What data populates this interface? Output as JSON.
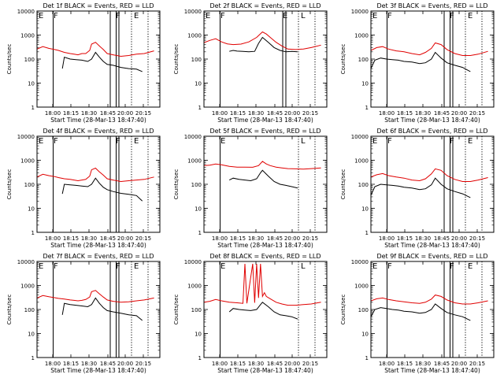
{
  "chart_data": [
    {
      "type": "line",
      "title": "Det 1f BLACK = Events, RED = LLD",
      "xlabel": "Start Time (28-Mar-13 18:47:40)",
      "ylabel": "Counts/sec",
      "yscale": "log",
      "ylim": [
        1,
        10000
      ],
      "y_ticks": [
        "1",
        "10",
        "100",
        "1000",
        "10000"
      ],
      "xlim_minutes": [
        17.45,
        20.6
      ],
      "x_ticks": [
        "18:00",
        "18:15",
        "18:30",
        "18:45",
        "20:00",
        "20:15"
      ],
      "marker_letters": [
        "E",
        "F",
        "F",
        "E"
      ],
      "series": [
        {
          "color": "#e00000",
          "x": [
            17.45,
            17.6,
            17.75,
            17.9,
            18.0,
            18.15,
            18.3,
            18.4,
            18.5,
            18.6,
            18.7,
            18.8,
            18.85,
            18.95,
            19.05,
            19.15,
            19.25,
            19.4,
            19.6,
            19.8,
            20.0,
            20.2,
            20.45
          ],
          "y": [
            260,
            330,
            280,
            250,
            230,
            190,
            170,
            160,
            150,
            170,
            170,
            230,
            420,
            500,
            350,
            250,
            170,
            150,
            130,
            140,
            160,
            170,
            220
          ]
        },
        {
          "color": "#000000",
          "x": [
            18.1,
            18.15,
            18.3,
            18.45,
            18.6,
            18.75,
            18.85,
            18.95,
            19.05,
            19.15,
            19.25,
            19.4,
            19.6,
            19.8,
            20.0,
            20.15
          ],
          "y": [
            40,
            120,
            100,
            95,
            90,
            80,
            100,
            190,
            120,
            80,
            60,
            55,
            45,
            40,
            38,
            30
          ]
        }
      ]
    },
    {
      "type": "line",
      "title": "Det 2f BLACK = Events, RED = LLD",
      "xlabel": "Start Time (28-Mar-13 18:47:40)",
      "ylabel": "Counts/sec",
      "yscale": "log",
      "ylim": [
        1,
        10000
      ],
      "y_ticks": [
        "1",
        "10",
        "100",
        "1000",
        "10000"
      ],
      "xlim_minutes": [
        17.45,
        20.6
      ],
      "x_ticks": [
        "18:00",
        "18:15",
        "18:30",
        "18:45",
        "20:00",
        "20:15"
      ],
      "marker_letters": [
        "E",
        "F",
        "E",
        "L"
      ],
      "series": [
        {
          "color": "#e00000",
          "x": [
            17.45,
            17.6,
            17.75,
            17.9,
            18.05,
            18.2,
            18.4,
            18.6,
            18.8,
            18.95,
            19.05,
            19.15,
            19.3,
            19.45,
            19.6,
            19.8,
            20.0,
            20.2,
            20.45
          ],
          "y": [
            480,
            600,
            700,
            520,
            430,
            400,
            420,
            520,
            800,
            1350,
            1100,
            800,
            500,
            350,
            260,
            250,
            260,
            300,
            380
          ]
        },
        {
          "color": "#000000",
          "x": [
            18.1,
            18.2,
            18.3,
            18.45,
            18.6,
            18.75,
            18.85,
            18.95,
            19.1,
            19.25,
            19.4,
            19.55,
            19.7,
            19.85
          ],
          "y": [
            210,
            230,
            215,
            210,
            200,
            210,
            450,
            800,
            500,
            300,
            230,
            200,
            210,
            200
          ]
        }
      ]
    },
    {
      "type": "line",
      "title": "Det 3f BLACK = Events, RED = LLD",
      "xlabel": "Start Time (28-Mar-13 18:47:40)",
      "ylabel": "Counts/sec",
      "yscale": "log",
      "ylim": [
        1,
        10000
      ],
      "y_ticks": [
        "1",
        "10",
        "100",
        "1000",
        "10000"
      ],
      "xlim_minutes": [
        17.45,
        20.6
      ],
      "x_ticks": [
        "18:00",
        "18:15",
        "18:30",
        "18:45",
        "20:00",
        "20:15"
      ],
      "marker_letters": [
        "E",
        "F",
        "F",
        "E"
      ],
      "series": [
        {
          "color": "#e00000",
          "x": [
            17.45,
            17.6,
            17.75,
            17.9,
            18.1,
            18.3,
            18.5,
            18.7,
            18.85,
            19.0,
            19.1,
            19.25,
            19.4,
            19.6,
            19.8,
            20.0,
            20.2,
            20.45
          ],
          "y": [
            230,
            300,
            330,
            260,
            220,
            200,
            170,
            150,
            190,
            280,
            470,
            400,
            250,
            170,
            140,
            140,
            160,
            210
          ]
        },
        {
          "color": "#000000",
          "x": [
            17.45,
            17.55,
            17.7,
            17.85,
            18.0,
            18.15,
            18.3,
            18.5,
            18.7,
            18.85,
            19.0,
            19.1,
            19.25,
            19.4,
            19.6,
            19.8,
            20.0
          ],
          "y": [
            40,
            90,
            110,
            100,
            95,
            90,
            80,
            75,
            65,
            70,
            100,
            190,
            110,
            70,
            55,
            45,
            30
          ]
        }
      ]
    },
    {
      "type": "line",
      "title": "Det 4f BLACK = Events, RED = LLD",
      "xlabel": "Start Time (28-Mar-13 18:47:40)",
      "ylabel": "Counts/sec",
      "yscale": "log",
      "ylim": [
        1,
        10000
      ],
      "y_ticks": [
        "1",
        "10",
        "100",
        "1000",
        "10000"
      ],
      "xlim_minutes": [
        17.45,
        20.6
      ],
      "x_ticks": [
        "18:00",
        "18:15",
        "18:30",
        "18:45",
        "20:00",
        "20:15"
      ],
      "marker_letters": [
        "E",
        "F",
        "F",
        "E"
      ],
      "series": [
        {
          "color": "#e00000",
          "x": [
            17.45,
            17.6,
            17.75,
            17.9,
            18.0,
            18.15,
            18.3,
            18.4,
            18.5,
            18.6,
            18.7,
            18.8,
            18.85,
            18.95,
            19.05,
            19.15,
            19.25,
            19.4,
            19.6,
            19.8,
            20.0,
            20.2,
            20.45
          ],
          "y": [
            200,
            260,
            230,
            210,
            190,
            170,
            160,
            150,
            140,
            150,
            160,
            220,
            400,
            470,
            330,
            240,
            170,
            150,
            130,
            140,
            150,
            160,
            200
          ]
        },
        {
          "color": "#000000",
          "x": [
            18.1,
            18.15,
            18.3,
            18.45,
            18.6,
            18.75,
            18.85,
            18.95,
            19.05,
            19.15,
            19.25,
            19.4,
            19.6,
            19.8,
            20.0,
            20.15
          ],
          "y": [
            40,
            100,
            95,
            90,
            85,
            80,
            100,
            180,
            110,
            75,
            60,
            50,
            42,
            38,
            34,
            20
          ]
        }
      ]
    },
    {
      "type": "line",
      "title": "Det 5f BLACK = Events, RED = LLD",
      "xlabel": "Start Time (28-Mar-13 18:47:40)",
      "ylabel": "Counts/sec",
      "yscale": "log",
      "ylim": [
        1,
        10000
      ],
      "y_ticks": [
        "1",
        "10",
        "100",
        "1000",
        "10000"
      ],
      "xlim_minutes": [
        17.45,
        20.6
      ],
      "x_ticks": [
        "18:00",
        "18:15",
        "18:30",
        "18:45",
        "20:00",
        "20:15"
      ],
      "marker_letters": [
        "E",
        "L"
      ],
      "series": [
        {
          "color": "#e00000",
          "x": [
            17.45,
            17.6,
            17.75,
            17.9,
            18.1,
            18.3,
            18.5,
            18.7,
            18.85,
            18.95,
            19.05,
            19.15,
            19.3,
            19.45,
            19.6,
            19.8,
            20.0,
            20.2,
            20.45
          ],
          "y": [
            600,
            620,
            700,
            650,
            560,
            520,
            520,
            510,
            600,
            900,
            700,
            600,
            520,
            480,
            450,
            440,
            430,
            450,
            480
          ]
        },
        {
          "color": "#000000",
          "x": [
            18.1,
            18.2,
            18.35,
            18.5,
            18.65,
            18.8,
            18.9,
            18.95,
            19.1,
            19.25,
            19.4,
            19.55,
            19.7,
            19.85
          ],
          "y": [
            150,
            180,
            160,
            150,
            140,
            170,
            300,
            380,
            220,
            130,
            100,
            90,
            80,
            70
          ]
        }
      ]
    },
    {
      "type": "line",
      "title": "Det 6f BLACK = Events, RED = LLD",
      "xlabel": "Start Time (28-Mar-13 18:47:40)",
      "ylabel": "Counts/sec",
      "yscale": "log",
      "ylim": [
        1,
        10000
      ],
      "y_ticks": [
        "1",
        "10",
        "100",
        "1000",
        "10000"
      ],
      "xlim_minutes": [
        17.45,
        20.6
      ],
      "x_ticks": [
        "18:00",
        "18:15",
        "18:30",
        "18:45",
        "20:00",
        "20:15"
      ],
      "marker_letters": [
        "E",
        "F",
        "F",
        "E"
      ],
      "series": [
        {
          "color": "#e00000",
          "x": [
            17.45,
            17.6,
            17.75,
            17.9,
            18.1,
            18.3,
            18.5,
            18.7,
            18.85,
            19.0,
            19.1,
            19.25,
            19.4,
            19.6,
            19.8,
            20.0,
            20.2,
            20.45
          ],
          "y": [
            200,
            250,
            280,
            230,
            200,
            180,
            150,
            140,
            170,
            270,
            440,
            380,
            230,
            160,
            130,
            130,
            150,
            190
          ]
        },
        {
          "color": "#000000",
          "x": [
            17.45,
            17.55,
            17.7,
            17.85,
            18.0,
            18.15,
            18.3,
            18.5,
            18.7,
            18.85,
            19.0,
            19.1,
            19.25,
            19.4,
            19.6,
            19.8,
            20.0
          ],
          "y": [
            35,
            80,
            100,
            95,
            90,
            85,
            75,
            70,
            60,
            65,
            95,
            180,
            100,
            65,
            50,
            40,
            28
          ]
        }
      ]
    },
    {
      "type": "line",
      "title": "Det 7f BLACK = Events, RED = LLD",
      "xlabel": "Start Time (28-Mar-13 18:47:40)",
      "ylabel": "Counts/sec",
      "yscale": "log",
      "ylim": [
        1,
        10000
      ],
      "y_ticks": [
        "1",
        "10",
        "100",
        "1000",
        "10000"
      ],
      "xlim_minutes": [
        17.45,
        20.6
      ],
      "x_ticks": [
        "18:00",
        "18:15",
        "18:30",
        "18:45",
        "20:00",
        "20:15"
      ],
      "marker_letters": [
        "E",
        "F",
        "F",
        "E"
      ],
      "series": [
        {
          "color": "#e00000",
          "x": [
            17.45,
            17.6,
            17.75,
            17.9,
            18.0,
            18.15,
            18.3,
            18.4,
            18.5,
            18.6,
            18.7,
            18.8,
            18.85,
            18.95,
            19.05,
            19.15,
            19.25,
            19.4,
            19.6,
            19.8,
            20.0,
            20.2,
            20.45
          ],
          "y": [
            300,
            380,
            340,
            310,
            290,
            270,
            250,
            240,
            230,
            240,
            260,
            330,
            550,
            620,
            450,
            330,
            250,
            220,
            200,
            210,
            230,
            250,
            300
          ]
        },
        {
          "color": "#000000",
          "x": [
            18.1,
            18.15,
            18.3,
            18.45,
            18.6,
            18.75,
            18.85,
            18.95,
            19.05,
            19.15,
            19.25,
            19.4,
            19.6,
            19.8,
            20.0,
            20.15
          ],
          "y": [
            60,
            180,
            160,
            150,
            140,
            130,
            160,
            300,
            180,
            120,
            90,
            80,
            70,
            60,
            55,
            35
          ]
        }
      ]
    },
    {
      "type": "line",
      "title": "Det 8f BLACK = Events, RED = LLD",
      "xlabel": "Start Time (28-Mar-13 18:47:40)",
      "ylabel": "Counts/sec",
      "yscale": "log",
      "ylim": [
        1,
        10000
      ],
      "y_ticks": [
        "1",
        "10",
        "100",
        "1000",
        "10000"
      ],
      "xlim_minutes": [
        17.45,
        20.6
      ],
      "x_ticks": [
        "18:00",
        "18:15",
        "18:30",
        "18:45",
        "20:00",
        "20:15"
      ],
      "marker_letters": [
        "E",
        "L"
      ],
      "series": [
        {
          "color": "#e00000",
          "x": [
            17.45,
            17.6,
            17.75,
            17.9,
            18.1,
            18.3,
            18.45,
            18.5,
            18.55,
            18.7,
            18.75,
            18.8,
            18.85,
            18.9,
            18.95,
            19.0,
            19.05,
            19.15,
            19.3,
            19.45,
            19.6,
            19.8,
            20.0,
            20.2,
            20.45
          ],
          "y": [
            200,
            220,
            260,
            230,
            200,
            190,
            180,
            8000,
            180,
            8000,
            190,
            8000,
            300,
            8000,
            350,
            500,
            350,
            280,
            200,
            170,
            150,
            150,
            160,
            170,
            200
          ]
        },
        {
          "color": "#000000",
          "x": [
            18.1,
            18.2,
            18.35,
            18.5,
            18.65,
            18.8,
            18.9,
            18.95,
            19.1,
            19.25,
            19.4,
            19.55,
            19.7,
            19.85
          ],
          "y": [
            80,
            110,
            100,
            95,
            90,
            100,
            160,
            200,
            130,
            80,
            60,
            55,
            50,
            40
          ]
        }
      ]
    },
    {
      "type": "line",
      "title": "Det 9f BLACK = Events, RED = LLD",
      "xlabel": "Start Time (28-Mar-13 18:47:40)",
      "ylabel": "Counts/sec",
      "yscale": "log",
      "ylim": [
        1,
        10000
      ],
      "y_ticks": [
        "1",
        "10",
        "100",
        "1000",
        "10000"
      ],
      "xlim_minutes": [
        17.45,
        20.6
      ],
      "x_ticks": [
        "18:00",
        "18:15",
        "18:30",
        "18:45",
        "20:00",
        "20:15"
      ],
      "marker_letters": [
        "E",
        "F",
        "F",
        "E"
      ],
      "series": [
        {
          "color": "#e00000",
          "x": [
            17.45,
            17.6,
            17.75,
            17.9,
            18.1,
            18.3,
            18.5,
            18.7,
            18.85,
            19.0,
            19.1,
            19.25,
            19.4,
            19.6,
            19.8,
            20.0,
            20.2,
            20.45
          ],
          "y": [
            230,
            280,
            300,
            260,
            230,
            210,
            190,
            180,
            200,
            270,
            400,
            350,
            250,
            190,
            170,
            170,
            190,
            230
          ]
        },
        {
          "color": "#000000",
          "x": [
            17.45,
            17.55,
            17.7,
            17.85,
            18.0,
            18.15,
            18.3,
            18.5,
            18.7,
            18.85,
            19.0,
            19.1,
            19.25,
            19.4,
            19.6,
            19.8,
            20.0
          ],
          "y": [
            50,
            100,
            120,
            110,
            100,
            95,
            85,
            80,
            70,
            75,
            100,
            170,
            110,
            75,
            60,
            50,
            35
          ]
        }
      ]
    }
  ]
}
